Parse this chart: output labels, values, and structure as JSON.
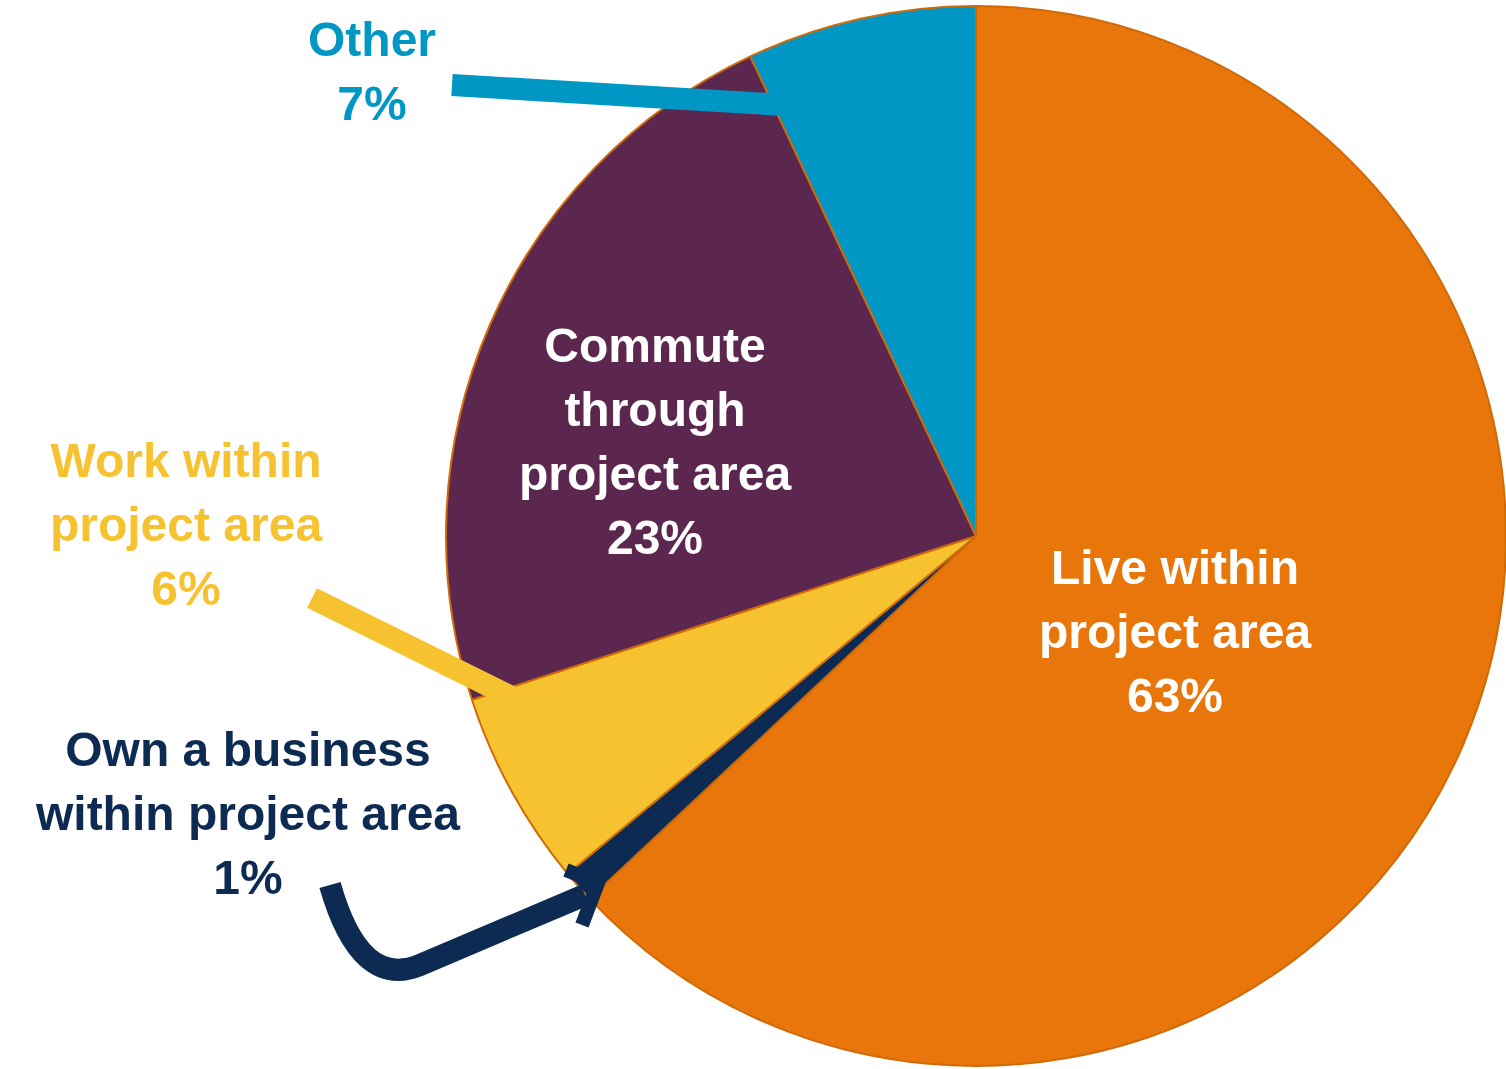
{
  "chart_data": {
    "type": "pie",
    "categories": [
      "Live within project area",
      "Own a business within project area",
      "Work within project area",
      "Commute through project area",
      "Other"
    ],
    "values": [
      63,
      1,
      6,
      23,
      7
    ],
    "colors": [
      "#e8760a",
      "#0d2b52",
      "#f7c22f",
      "#5c274f",
      "#0097c4"
    ],
    "value_labels": [
      "63%",
      "1%",
      "6%",
      "23%",
      "7%"
    ],
    "legend": false
  }
}
